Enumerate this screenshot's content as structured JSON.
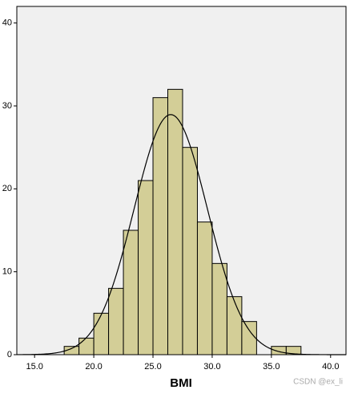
{
  "chart_data": {
    "type": "histogram",
    "x_label": "BMI",
    "watermark": "CSDN @ex_li",
    "bins": [
      17.5,
      18.75,
      20,
      21.25,
      22.5,
      23.75,
      25,
      26.25,
      27.5,
      28.75,
      30,
      31.25,
      32.5,
      33.75,
      35,
      36.25,
      37.5
    ],
    "values": [
      1,
      2,
      5,
      8,
      15,
      21,
      31,
      32,
      25,
      16,
      11,
      7,
      4,
      0,
      1,
      1
    ],
    "color": "#d3ce97",
    "curve": {
      "mean": 26.5,
      "sd": 3.1
    },
    "xlim": [
      13.5,
      41.3
    ],
    "xticks": [
      {
        "value": 15,
        "label": "15.0"
      },
      {
        "value": 20,
        "label": "20.0"
      },
      {
        "value": 25,
        "label": "25.0"
      },
      {
        "value": 30,
        "label": "30.0"
      },
      {
        "value": 35,
        "label": "35.0"
      },
      {
        "value": 40,
        "label": "40.0"
      }
    ],
    "ylim": [
      0,
      42
    ],
    "yticks": [
      0,
      10,
      20,
      30,
      40
    ]
  }
}
